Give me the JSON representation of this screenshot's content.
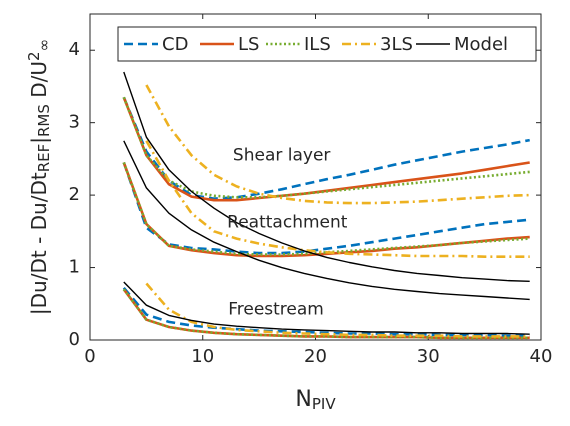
{
  "chart_data": {
    "type": "line",
    "xlabel": [
      {
        "text": "N",
        "shift": "none"
      },
      {
        "text": "PIV",
        "shift": "sub"
      }
    ],
    "ylabel": [
      {
        "text": "|Du/Dt - Du/Dt",
        "shift": "none"
      },
      {
        "text": "REF",
        "shift": "sub"
      },
      {
        "text": "|",
        "shift": "none"
      },
      {
        "text": "RMS",
        "shift": "sub"
      },
      {
        "text": " D/U",
        "shift": "none"
      },
      {
        "text": "2",
        "shift": "sup"
      },
      {
        "text": "∞",
        "shift": "sub"
      }
    ],
    "annotations": [
      "Shear layer",
      "Reattachment",
      "Freestream"
    ],
    "x": [
      3,
      5,
      7,
      9,
      11,
      13,
      15,
      17,
      19,
      21,
      23,
      25,
      27,
      29,
      31,
      33,
      35,
      37,
      39
    ],
    "xlim": [
      0,
      40
    ],
    "xticks": [
      0,
      10,
      20,
      30,
      40
    ],
    "ylim": [
      0,
      4.5
    ],
    "yticks": [
      0,
      1,
      2,
      3,
      4
    ],
    "legend": "top",
    "series": [
      {
        "name": "CD",
        "color": "#0072BD",
        "dash": "dashed",
        "curves": [
          [
            3.35,
            2.6,
            2.2,
            2.0,
            1.95,
            1.97,
            2.02,
            2.08,
            2.15,
            2.22,
            2.28,
            2.35,
            2.42,
            2.48,
            2.54,
            2.6,
            2.65,
            2.7,
            2.76
          ],
          [
            2.45,
            1.55,
            1.32,
            1.27,
            1.25,
            1.22,
            1.2,
            1.2,
            1.22,
            1.26,
            1.3,
            1.35,
            1.4,
            1.45,
            1.5,
            1.55,
            1.6,
            1.63,
            1.66
          ],
          [
            0.72,
            0.35,
            0.25,
            0.2,
            0.17,
            0.15,
            0.13,
            0.12,
            0.11,
            0.1,
            0.09,
            0.09,
            0.08,
            0.08,
            0.07,
            0.07,
            0.07,
            0.06,
            0.06
          ]
        ]
      },
      {
        "name": "LS",
        "color": "#D95319",
        "dash": "solid",
        "curves": [
          [
            3.35,
            2.55,
            2.15,
            1.98,
            1.93,
            1.93,
            1.96,
            1.99,
            2.02,
            2.06,
            2.1,
            2.14,
            2.18,
            2.22,
            2.26,
            2.3,
            2.35,
            2.4,
            2.45
          ],
          [
            2.45,
            1.6,
            1.3,
            1.24,
            1.2,
            1.17,
            1.16,
            1.16,
            1.17,
            1.19,
            1.21,
            1.23,
            1.26,
            1.28,
            1.31,
            1.34,
            1.37,
            1.4,
            1.42
          ],
          [
            0.7,
            0.28,
            0.18,
            0.13,
            0.1,
            0.08,
            0.07,
            0.06,
            0.05,
            0.05,
            0.04,
            0.04,
            0.04,
            0.04,
            0.03,
            0.03,
            0.03,
            0.03,
            0.03
          ]
        ]
      },
      {
        "name": "ILS",
        "color": "#77AC30",
        "dash": "dotted",
        "curves": [
          [
            3.35,
            2.55,
            2.2,
            2.05,
            1.99,
            1.97,
            1.97,
            1.99,
            2.02,
            2.05,
            2.08,
            2.11,
            2.14,
            2.17,
            2.2,
            2.23,
            2.26,
            2.29,
            2.32
          ],
          [
            2.45,
            1.6,
            1.3,
            1.25,
            1.22,
            1.19,
            1.18,
            1.18,
            1.19,
            1.21,
            1.23,
            1.25,
            1.27,
            1.29,
            1.31,
            1.34,
            1.36,
            1.38,
            1.4
          ],
          [
            0.7,
            0.28,
            0.18,
            0.13,
            0.1,
            0.08,
            0.07,
            0.06,
            0.05,
            0.05,
            0.04,
            0.04,
            0.04,
            0.04,
            0.03,
            0.03,
            0.03,
            0.03,
            0.03
          ]
        ]
      },
      {
        "name": "3LS",
        "color": "#EDB120",
        "dash": "dashdot",
        "curves": [
          [
            null,
            3.52,
            2.95,
            2.55,
            2.28,
            2.12,
            2.02,
            1.96,
            1.92,
            1.9,
            1.89,
            1.89,
            1.9,
            1.91,
            1.93,
            1.95,
            1.97,
            1.99,
            2.0
          ],
          [
            null,
            2.75,
            2.2,
            1.75,
            1.5,
            1.4,
            1.33,
            1.28,
            1.24,
            1.21,
            1.19,
            1.18,
            1.17,
            1.16,
            1.16,
            1.16,
            1.15,
            1.15,
            1.15
          ],
          [
            null,
            0.78,
            0.42,
            0.25,
            0.18,
            0.14,
            0.12,
            0.1,
            0.09,
            0.08,
            0.07,
            0.07,
            0.06,
            0.06,
            0.06,
            0.05,
            0.05,
            0.05,
            0.05
          ]
        ]
      },
      {
        "name": "Model",
        "color": "#000000",
        "dash": "thin",
        "curves": [
          [
            3.7,
            2.8,
            2.35,
            2.05,
            1.82,
            1.62,
            1.47,
            1.34,
            1.23,
            1.14,
            1.07,
            1.01,
            0.96,
            0.92,
            0.89,
            0.86,
            0.84,
            0.82,
            0.81
          ],
          [
            2.75,
            2.1,
            1.75,
            1.52,
            1.35,
            1.22,
            1.1,
            1.0,
            0.92,
            0.85,
            0.79,
            0.74,
            0.7,
            0.67,
            0.64,
            0.62,
            0.6,
            0.58,
            0.56
          ],
          [
            0.8,
            0.48,
            0.34,
            0.27,
            0.22,
            0.19,
            0.17,
            0.15,
            0.14,
            0.13,
            0.12,
            0.11,
            0.11,
            0.1,
            0.1,
            0.09,
            0.09,
            0.09,
            0.08
          ]
        ]
      }
    ]
  }
}
